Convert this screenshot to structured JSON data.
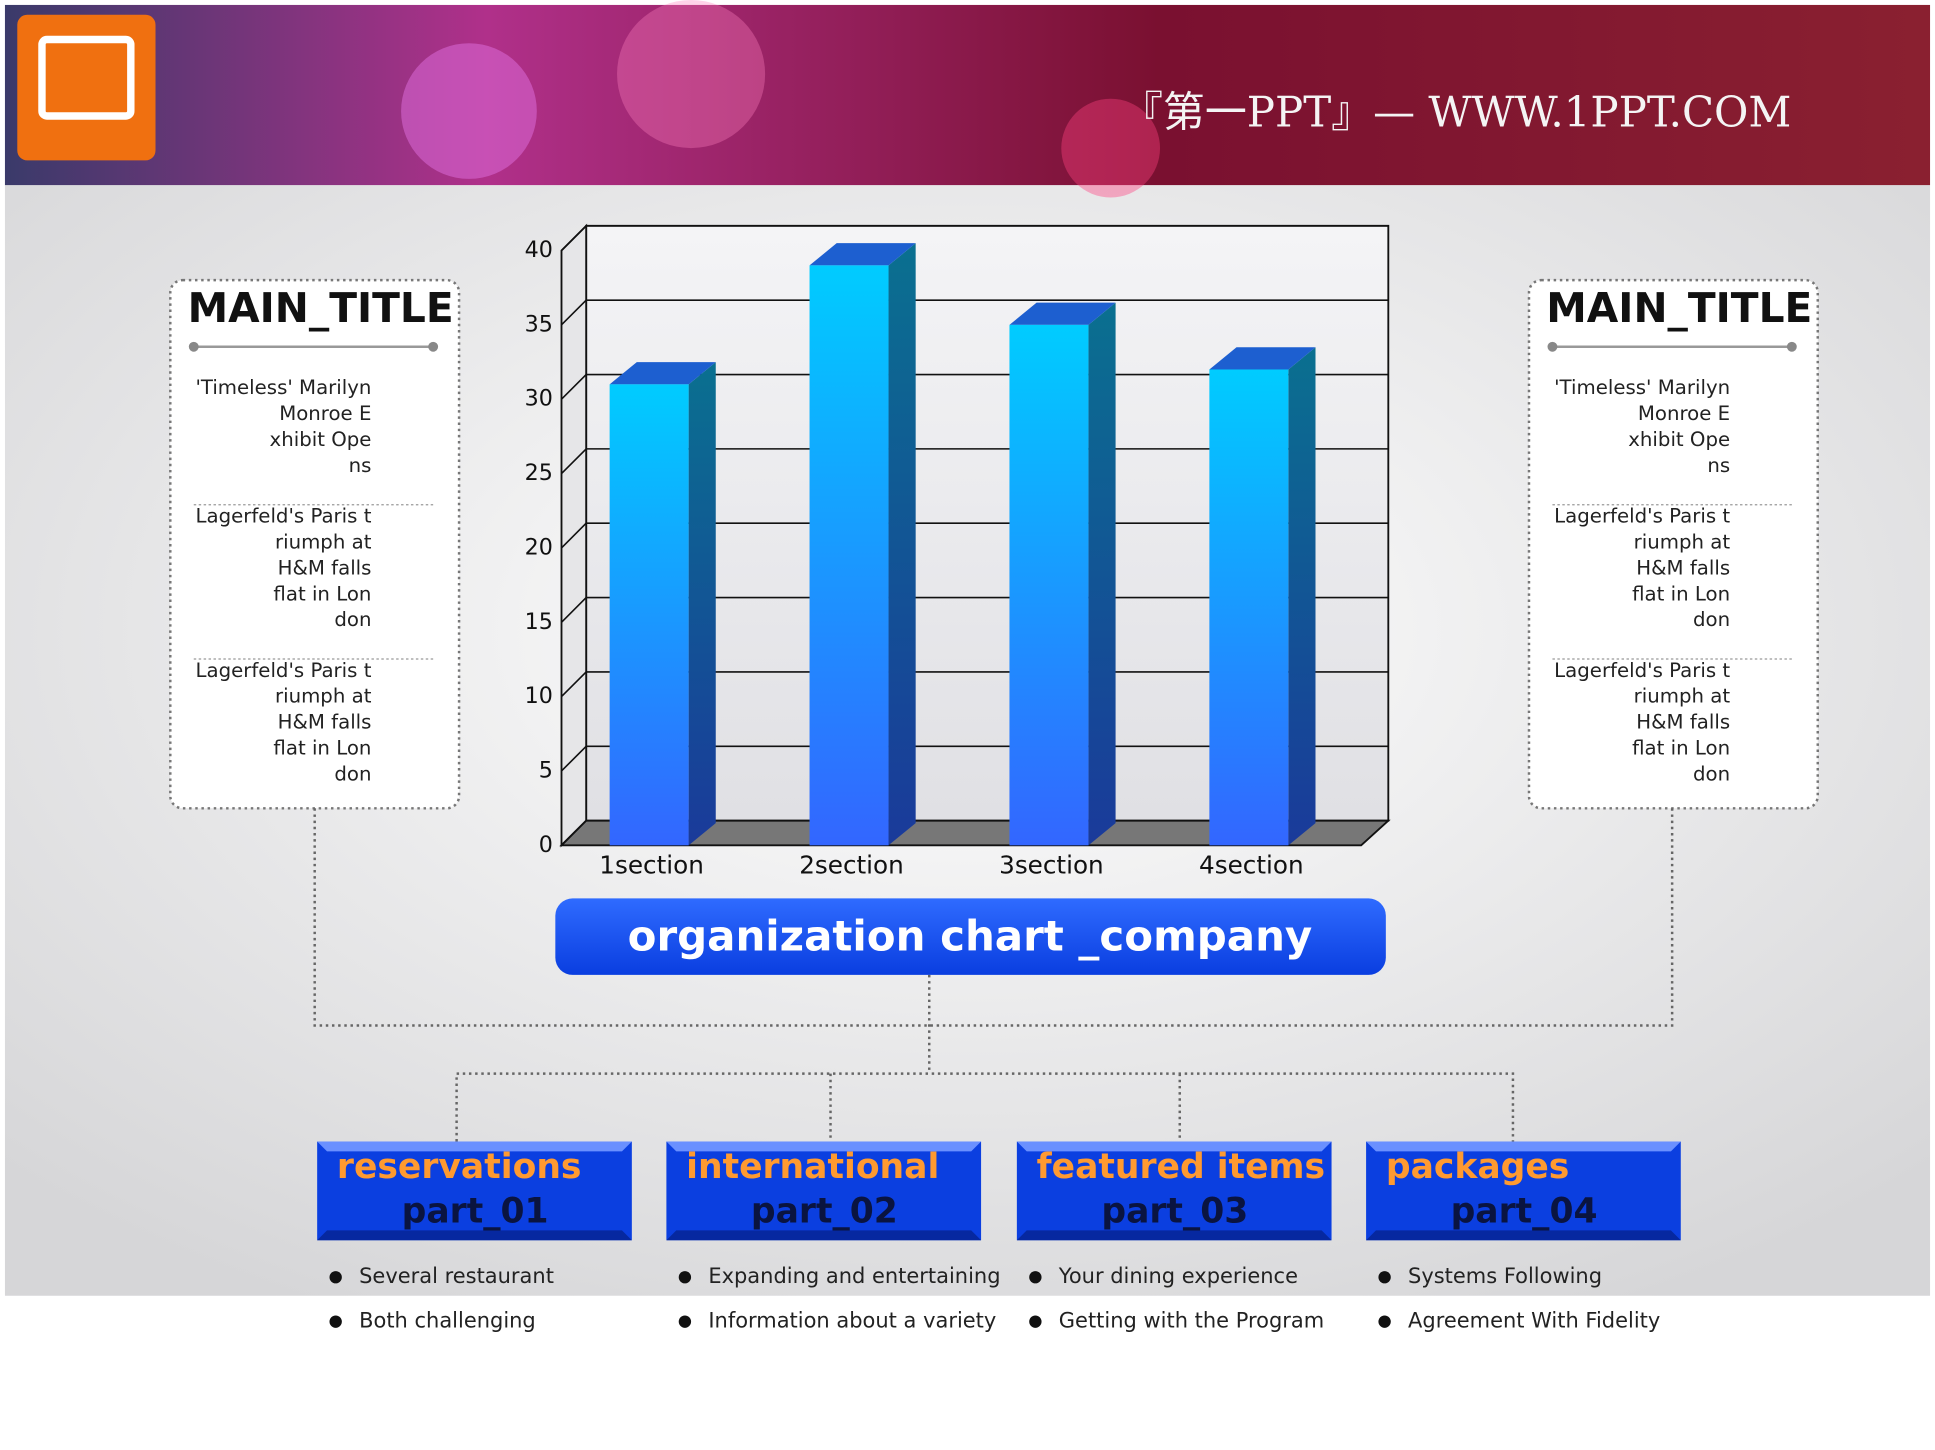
{
  "header": {
    "text": "『第一PPT』— WWW.1PPT.COM"
  },
  "side_panels": [
    {
      "title": "MAIN_TITLE",
      "paragraphs": [
        [
          "'Timeless' Marilyn",
          "Monroe E",
          "xhibit Ope",
          "ns"
        ],
        [
          "Lagerfeld's Paris t",
          "riumph at",
          "H&M falls",
          "flat in Lon",
          "don"
        ],
        [
          "Lagerfeld's Paris t",
          "riumph at",
          "H&M falls",
          "flat in Lon",
          "don"
        ]
      ]
    },
    {
      "title": "MAIN_TITLE",
      "paragraphs": [
        [
          "'Timeless' Marilyn",
          "Monroe E",
          "xhibit Ope",
          "ns"
        ],
        [
          "Lagerfeld's Paris t",
          "riumph at",
          "H&M falls",
          "flat in Lon",
          "don"
        ],
        [
          "Lagerfeld's Paris t",
          "riumph at",
          "H&M falls",
          "flat in Lon",
          "don"
        ]
      ]
    }
  ],
  "chart_data": {
    "type": "bar",
    "categories": [
      "1section",
      "2section",
      "3section",
      "4section"
    ],
    "values": [
      31,
      39,
      35,
      32
    ],
    "color": "#1e90ff",
    "ylim": [
      0,
      40
    ],
    "yticks": [
      0,
      5,
      10,
      15,
      20,
      25,
      30,
      35,
      40
    ],
    "grid": true
  },
  "org_title": "organization chart _company",
  "parts": [
    {
      "name": "reservations",
      "part": "part_01",
      "bullets": [
        "Several restaurant",
        "Both challenging"
      ]
    },
    {
      "name": "international",
      "part": "part_02",
      "bullets": [
        "Expanding and entertaining",
        "Information about a variety"
      ]
    },
    {
      "name": "featured items",
      "part": "part_03",
      "bullets": [
        "Your dining experience",
        "Getting with the Program"
      ]
    },
    {
      "name": "packages",
      "part": "part_04",
      "bullets": [
        "Systems Following",
        "Agreement With Fidelity"
      ]
    }
  ]
}
